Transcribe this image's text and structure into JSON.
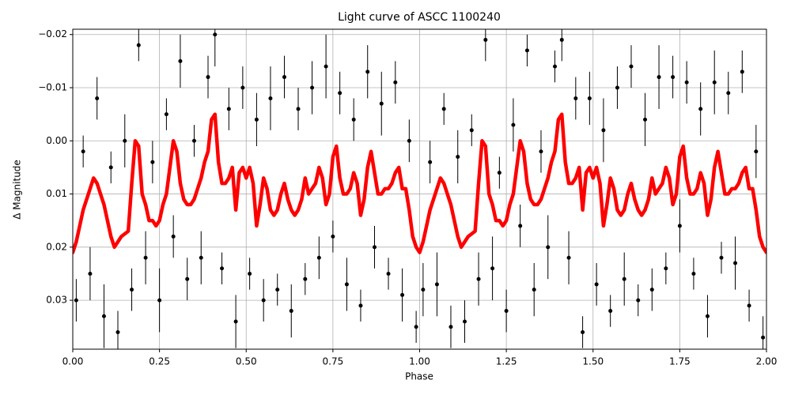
{
  "chart_data": {
    "type": "line",
    "title": "Light curve of ASCC 1100240",
    "x_label": "Phase",
    "y_label": "Δ Magnitude",
    "xlim": [
      0,
      2
    ],
    "ylim": [
      0.0392,
      -0.021
    ],
    "xticks": [
      {
        "value": 0,
        "label": "0.00"
      },
      0.25,
      {
        "value": 0.5,
        "label": "0.50"
      },
      0.75,
      {
        "value": 1,
        "label": "1.00"
      },
      1.25,
      {
        "value": 1.5,
        "label": "1.50"
      },
      1.75,
      {
        "value": 2,
        "label": "2.00"
      }
    ],
    "yticks": [
      {
        "value": -0.02,
        "label": "−0.02"
      },
      {
        "value": -0.01,
        "label": "−0.01"
      },
      {
        "value": 0,
        "label": "0.00"
      },
      0.01,
      0.02,
      0.03
    ],
    "grid": true,
    "series": [
      {
        "type": "errorbar",
        "color": "#000000",
        "x": [
          0.01,
          0.03,
          0.05,
          0.07,
          0.09,
          0.11,
          0.13,
          0.15,
          0.17,
          0.19,
          0.21,
          0.23,
          0.25,
          0.27,
          0.29,
          0.31,
          0.33,
          0.35,
          0.37,
          0.39,
          0.41,
          0.43,
          0.45,
          0.47,
          0.49,
          0.51,
          0.53,
          0.55,
          0.57,
          0.59,
          0.61,
          0.63,
          0.65,
          0.67,
          0.69,
          0.71,
          0.73,
          0.75,
          0.77,
          0.79,
          0.81,
          0.83,
          0.85,
          0.87,
          0.89,
          0.91,
          0.93,
          0.95,
          0.97,
          0.99,
          1.01,
          1.03,
          1.05,
          1.07,
          1.09,
          1.11,
          1.13,
          1.15,
          1.17,
          1.19,
          1.21,
          1.23,
          1.25,
          1.27,
          1.29,
          1.31,
          1.33,
          1.35,
          1.37,
          1.39,
          1.41,
          1.43,
          1.45,
          1.47,
          1.49,
          1.51,
          1.53,
          1.55,
          1.57,
          1.59,
          1.61,
          1.63,
          1.65,
          1.67,
          1.69,
          1.71,
          1.73,
          1.75,
          1.77,
          1.79,
          1.81,
          1.83,
          1.85,
          1.87,
          1.89,
          1.91,
          1.93,
          1.95,
          1.97,
          1.99
        ],
        "values": [
          0.03,
          0.002,
          0.025,
          -0.008,
          0.033,
          0.005,
          0.036,
          0.0,
          0.028,
          -0.018,
          0.022,
          0.004,
          0.03,
          -0.005,
          0.018,
          -0.015,
          0.026,
          0.0,
          0.022,
          -0.012,
          -0.02,
          0.024,
          -0.006,
          0.034,
          -0.01,
          0.025,
          -0.004,
          0.03,
          -0.008,
          0.028,
          -0.012,
          0.032,
          -0.006,
          0.026,
          -0.01,
          0.022,
          -0.014,
          0.018,
          -0.009,
          0.027,
          -0.004,
          0.031,
          -0.013,
          0.02,
          -0.007,
          0.025,
          -0.011,
          0.029,
          0.0,
          0.035,
          0.028,
          0.004,
          0.027,
          -0.006,
          0.035,
          0.003,
          0.034,
          -0.002,
          0.026,
          -0.019,
          0.024,
          0.006,
          0.032,
          -0.003,
          0.016,
          -0.017,
          0.028,
          0.002,
          0.02,
          -0.014,
          -0.019,
          0.022,
          -0.008,
          0.036,
          -0.008,
          0.027,
          -0.002,
          0.032,
          -0.01,
          0.026,
          -0.014,
          0.03,
          -0.004,
          0.028,
          -0.012,
          0.024,
          -0.012,
          0.016,
          -0.011,
          0.025,
          -0.006,
          0.033,
          -0.011,
          0.022,
          -0.009,
          0.023,
          -0.013,
          0.031,
          0.002,
          0.037
        ],
        "errors": [
          0.004,
          0.003,
          0.005,
          0.004,
          0.006,
          0.003,
          0.004,
          0.005,
          0.004,
          0.003,
          0.005,
          0.004,
          0.006,
          0.003,
          0.004,
          0.005,
          0.004,
          0.003,
          0.005,
          0.004,
          0.006,
          0.003,
          0.004,
          0.005,
          0.004,
          0.003,
          0.005,
          0.004,
          0.006,
          0.003,
          0.004,
          0.005,
          0.004,
          0.003,
          0.005,
          0.004,
          0.006,
          0.003,
          0.004,
          0.005,
          0.004,
          0.003,
          0.005,
          0.004,
          0.006,
          0.003,
          0.004,
          0.005,
          0.004,
          0.003,
          0.005,
          0.004,
          0.006,
          0.003,
          0.004,
          0.005,
          0.004,
          0.003,
          0.005,
          0.004,
          0.006,
          0.003,
          0.004,
          0.005,
          0.004,
          0.003,
          0.005,
          0.004,
          0.006,
          0.003,
          0.004,
          0.005,
          0.004,
          0.003,
          0.005,
          0.004,
          0.006,
          0.003,
          0.004,
          0.005,
          0.004,
          0.003,
          0.005,
          0.004,
          0.006,
          0.003,
          0.004,
          0.005,
          0.004,
          0.003,
          0.005,
          0.004,
          0.006,
          0.003,
          0.004,
          0.005,
          0.004,
          0.003,
          0.005,
          0.004
        ]
      },
      {
        "type": "line",
        "color": "#ff0000",
        "x": [
          0,
          0.01,
          0.02,
          0.03,
          0.04,
          0.05,
          0.06,
          0.07,
          0.08,
          0.09,
          0.1,
          0.11,
          0.12,
          0.13,
          0.14,
          0.15,
          0.16,
          0.17,
          0.18,
          0.19,
          0.2,
          0.21,
          0.22,
          0.23,
          0.24,
          0.25,
          0.26,
          0.27,
          0.28,
          0.29,
          0.3,
          0.31,
          0.32,
          0.33,
          0.34,
          0.35,
          0.36,
          0.37,
          0.38,
          0.39,
          0.4,
          0.41,
          0.42,
          0.43,
          0.44,
          0.45,
          0.46,
          0.47,
          0.48,
          0.49,
          0.5,
          0.51,
          0.52,
          0.53,
          0.54,
          0.55,
          0.56,
          0.57,
          0.58,
          0.59,
          0.6,
          0.61,
          0.62,
          0.63,
          0.64,
          0.65,
          0.66,
          0.67,
          0.68,
          0.69,
          0.7,
          0.71,
          0.72,
          0.73,
          0.74,
          0.75,
          0.76,
          0.77,
          0.78,
          0.79,
          0.8,
          0.81,
          0.82,
          0.83,
          0.84,
          0.85,
          0.86,
          0.87,
          0.88,
          0.89,
          0.9,
          0.91,
          0.92,
          0.93,
          0.94,
          0.95,
          0.96,
          0.97,
          0.98,
          0.99,
          1,
          1.01,
          1.02,
          1.03,
          1.04,
          1.05,
          1.06,
          1.07,
          1.08,
          1.09,
          1.1,
          1.11,
          1.12,
          1.13,
          1.14,
          1.15,
          1.16,
          1.17,
          1.18,
          1.19,
          1.2,
          1.21,
          1.22,
          1.23,
          1.24,
          1.25,
          1.26,
          1.27,
          1.28,
          1.29,
          1.3,
          1.31,
          1.32,
          1.33,
          1.34,
          1.35,
          1.36,
          1.37,
          1.38,
          1.39,
          1.4,
          1.41,
          1.42,
          1.43,
          1.44,
          1.45,
          1.46,
          1.47,
          1.48,
          1.49,
          1.5,
          1.51,
          1.52,
          1.53,
          1.54,
          1.55,
          1.56,
          1.57,
          1.58,
          1.59,
          1.6,
          1.61,
          1.62,
          1.63,
          1.64,
          1.65,
          1.66,
          1.67,
          1.68,
          1.69,
          1.7,
          1.71,
          1.72,
          1.73,
          1.74,
          1.75,
          1.76,
          1.77,
          1.78,
          1.79,
          1.8,
          1.81,
          1.82,
          1.83,
          1.84,
          1.85,
          1.86,
          1.87,
          1.88,
          1.89,
          1.9,
          1.91,
          1.92,
          1.93,
          1.94,
          1.95,
          1.96,
          1.97,
          1.98,
          1.99,
          2
        ],
        "values": [
          0.021,
          0.019,
          0.016,
          0.013,
          0.011,
          0.009,
          0.007,
          0.008,
          0.01,
          0.012,
          0.015,
          0.018,
          0.02,
          0.019,
          0.018,
          0.0175,
          0.017,
          0.008,
          0.0,
          0.001,
          0.01,
          0.012,
          0.015,
          0.015,
          0.016,
          0.015,
          0.012,
          0.01,
          0.005,
          0.0,
          0.002,
          0.008,
          0.011,
          0.012,
          0.012,
          0.011,
          0.009,
          0.007,
          0.004,
          0.002,
          -0.004,
          -0.005,
          0.004,
          0.008,
          0.008,
          0.007,
          0.005,
          0.013,
          0.006,
          0.005,
          0.007,
          0.005,
          0.008,
          0.016,
          0.012,
          0.007,
          0.009,
          0.013,
          0.014,
          0.013,
          0.01,
          0.008,
          0.011,
          0.013,
          0.014,
          0.013,
          0.011,
          0.007,
          0.01,
          0.009,
          0.008,
          0.005,
          0.007,
          0.012,
          0.01,
          0.003,
          0.001,
          0.007,
          0.01,
          0.01,
          0.009,
          0.006,
          0.008,
          0.014,
          0.011,
          0.005,
          0.002,
          0.006,
          0.01,
          0.01,
          0.009,
          0.009,
          0.008,
          0.006,
          0.005,
          0.009,
          0.009,
          0.013,
          0.018,
          0.02,
          0.021,
          0.019,
          0.016,
          0.013,
          0.011,
          0.009,
          0.007,
          0.008,
          0.01,
          0.012,
          0.015,
          0.018,
          0.02,
          0.019,
          0.018,
          0.0175,
          0.017,
          0.008,
          0.0,
          0.001,
          0.01,
          0.012,
          0.015,
          0.015,
          0.016,
          0.015,
          0.012,
          0.01,
          0.005,
          0.0,
          0.002,
          0.008,
          0.011,
          0.012,
          0.012,
          0.011,
          0.009,
          0.007,
          0.004,
          0.002,
          -0.004,
          -0.005,
          0.004,
          0.008,
          0.008,
          0.007,
          0.005,
          0.013,
          0.006,
          0.005,
          0.007,
          0.005,
          0.008,
          0.016,
          0.012,
          0.007,
          0.009,
          0.013,
          0.014,
          0.013,
          0.01,
          0.008,
          0.011,
          0.013,
          0.014,
          0.013,
          0.011,
          0.007,
          0.01,
          0.009,
          0.008,
          0.005,
          0.007,
          0.012,
          0.01,
          0.003,
          0.001,
          0.007,
          0.01,
          0.01,
          0.009,
          0.006,
          0.008,
          0.014,
          0.011,
          0.005,
          0.002,
          0.006,
          0.01,
          0.01,
          0.009,
          0.009,
          0.008,
          0.006,
          0.005,
          0.009,
          0.009,
          0.013,
          0.018,
          0.02,
          0.021
        ]
      }
    ]
  }
}
